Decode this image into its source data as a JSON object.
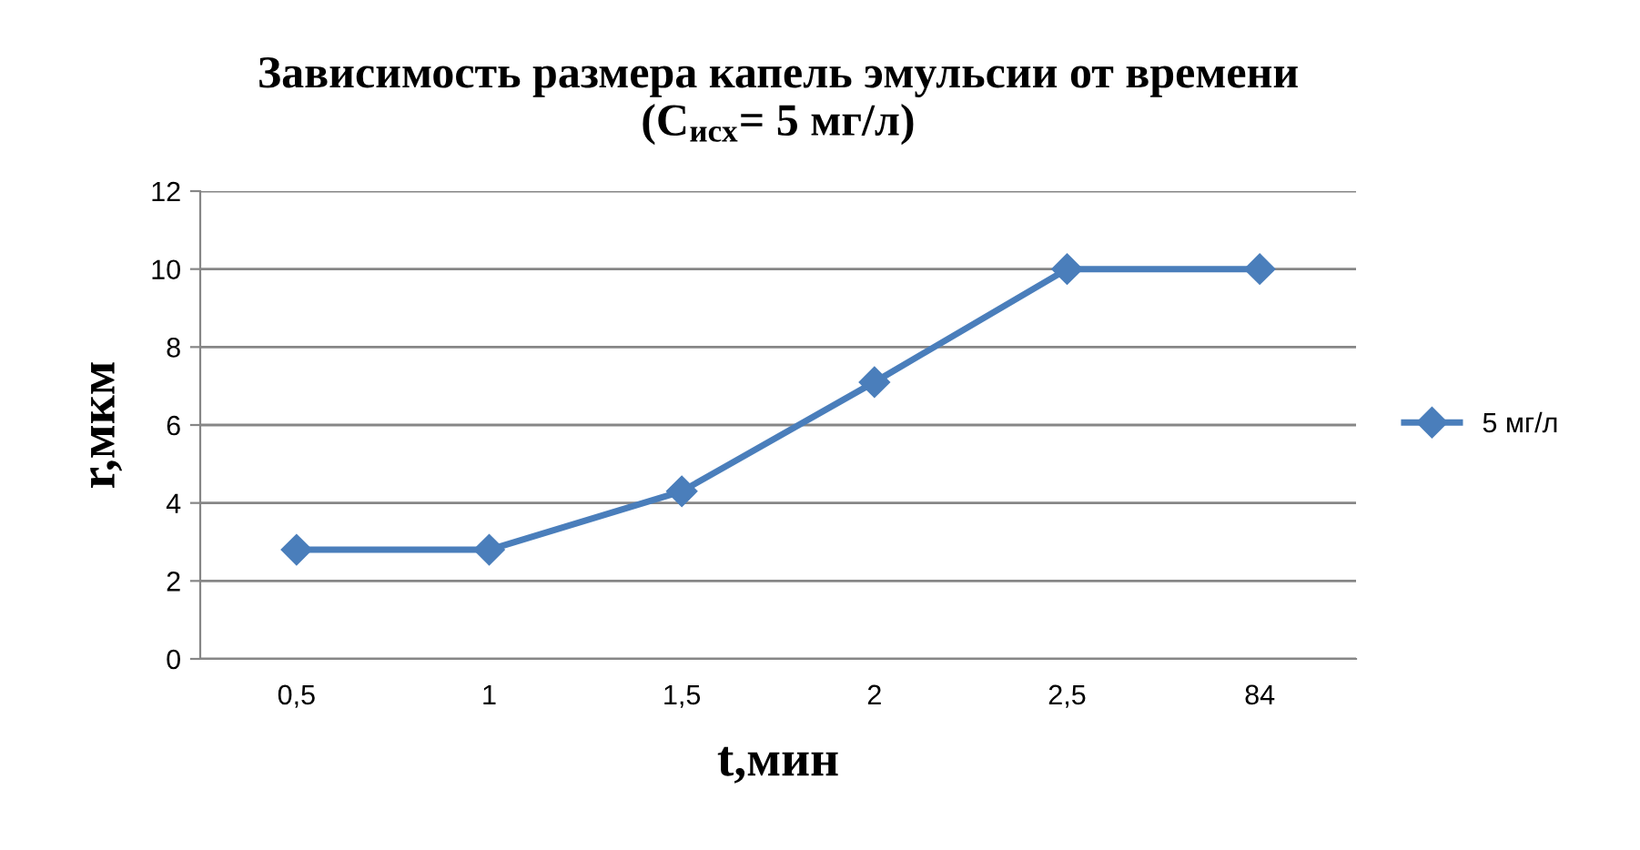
{
  "chart_data": {
    "type": "line",
    "title": "Зависимость размера капель эмульсии от времени\n(C$_{исх}$= 5 мг/л)",
    "xlabel": "t,мин",
    "ylabel": "r,мкм",
    "categories": [
      "0,5",
      "1",
      "1,5",
      "2",
      "2,5",
      "84"
    ],
    "series": [
      {
        "name": "5 мг/л",
        "color": "#4a7ebb",
        "values": [
          2.8,
          2.8,
          4.3,
          7.1,
          10,
          10
        ]
      }
    ],
    "ylim": [
      0,
      12
    ],
    "yticks": [
      0,
      2,
      4,
      6,
      8,
      10,
      12
    ],
    "grid": "y",
    "legend": "right",
    "marker": "diamond",
    "line_style": "solid"
  }
}
